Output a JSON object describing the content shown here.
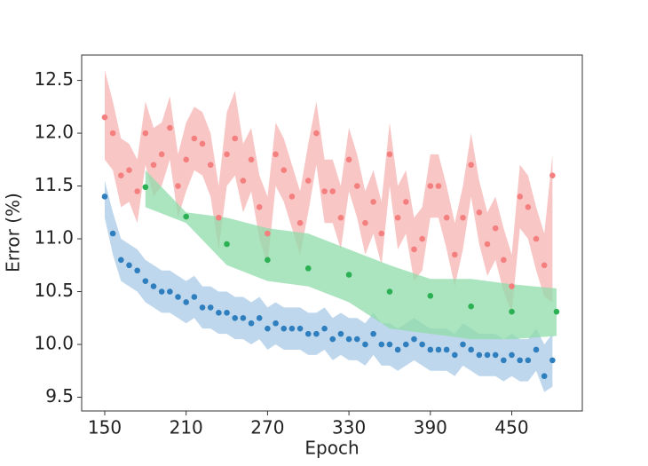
{
  "chart_data": {
    "type": "scatter",
    "xlabel": "Epoch",
    "ylabel": "Error (%)",
    "xlim": [
      133,
      502
    ],
    "ylim": [
      9.37,
      12.74
    ],
    "xticks": [
      150,
      210,
      270,
      330,
      390,
      450
    ],
    "yticks": [
      9.5,
      {
        "value": 10,
        "label": "10.0"
      },
      10.5,
      {
        "value": 11,
        "label": "11.0"
      },
      11.5,
      {
        "value": 12,
        "label": "12.0"
      },
      12.5
    ],
    "series": [
      {
        "color": "#f47f7f",
        "band_color": "#f7b3b3",
        "x": [
          150,
          156,
          162,
          168,
          174,
          180,
          186,
          192,
          198,
          204,
          210,
          216,
          222,
          228,
          234,
          240,
          246,
          252,
          258,
          264,
          270,
          276,
          282,
          288,
          294,
          300,
          306,
          312,
          318,
          324,
          330,
          336,
          342,
          348,
          354,
          360,
          366,
          372,
          378,
          384,
          390,
          396,
          402,
          408,
          414,
          420,
          426,
          432,
          438,
          444,
          450,
          456,
          462,
          468,
          474,
          480
        ],
        "values": [
          12.15,
          12.0,
          11.6,
          11.65,
          11.45,
          12.0,
          11.7,
          11.8,
          12.05,
          11.5,
          11.75,
          11.95,
          11.9,
          11.7,
          11.2,
          11.8,
          11.95,
          11.55,
          11.75,
          11.3,
          11.05,
          11.8,
          11.65,
          11.4,
          11.15,
          11.55,
          12.0,
          11.45,
          11.45,
          11.2,
          11.75,
          11.5,
          11.15,
          11.35,
          11.05,
          11.8,
          11.2,
          11.35,
          10.9,
          11.0,
          11.5,
          11.5,
          11.2,
          10.85,
          11.2,
          11.7,
          11.25,
          10.95,
          11.1,
          10.8,
          10.55,
          11.4,
          11.3,
          11.0,
          10.75,
          11.6
        ],
        "upper": [
          12.6,
          12.3,
          11.95,
          11.9,
          11.75,
          12.3,
          12.05,
          12.1,
          12.35,
          11.8,
          12.1,
          12.25,
          12.2,
          12.0,
          11.5,
          12.2,
          12.4,
          11.9,
          12.05,
          11.6,
          11.4,
          12.1,
          11.95,
          11.7,
          11.45,
          11.9,
          12.3,
          11.75,
          11.75,
          11.5,
          12.05,
          11.8,
          11.45,
          11.65,
          11.35,
          12.1,
          11.5,
          11.65,
          11.2,
          11.3,
          11.8,
          11.8,
          11.5,
          11.15,
          11.5,
          12.0,
          11.55,
          11.25,
          11.4,
          11.1,
          10.85,
          11.7,
          11.6,
          11.3,
          11.05,
          11.8
        ],
        "lower": [
          11.75,
          11.65,
          11.3,
          11.35,
          11.15,
          11.7,
          11.4,
          11.5,
          11.75,
          11.2,
          11.45,
          11.65,
          11.6,
          11.4,
          10.9,
          11.5,
          11.6,
          11.25,
          11.45,
          11.0,
          10.75,
          11.5,
          11.35,
          11.1,
          10.85,
          11.25,
          11.7,
          11.15,
          11.15,
          10.9,
          11.45,
          11.2,
          10.85,
          11.05,
          10.75,
          11.5,
          10.9,
          11.05,
          10.6,
          10.7,
          11.2,
          11.2,
          10.9,
          10.55,
          10.9,
          11.4,
          10.95,
          10.65,
          10.8,
          10.5,
          10.3,
          11.1,
          11.0,
          10.7,
          10.45,
          10.4
        ]
      },
      {
        "color": "#2f7fbf",
        "band_color": "#a9c9e6",
        "x": [
          150,
          156,
          162,
          168,
          174,
          180,
          186,
          192,
          198,
          204,
          210,
          216,
          222,
          228,
          234,
          240,
          246,
          252,
          258,
          264,
          270,
          276,
          282,
          288,
          294,
          300,
          306,
          312,
          318,
          324,
          330,
          336,
          342,
          348,
          354,
          360,
          366,
          372,
          378,
          384,
          390,
          396,
          402,
          408,
          414,
          420,
          426,
          432,
          438,
          444,
          450,
          456,
          462,
          468,
          474,
          480
        ],
        "values": [
          11.4,
          11.05,
          10.8,
          10.75,
          10.7,
          10.6,
          10.55,
          10.5,
          10.5,
          10.45,
          10.4,
          10.45,
          10.35,
          10.35,
          10.3,
          10.3,
          10.25,
          10.25,
          10.2,
          10.25,
          10.15,
          10.2,
          10.15,
          10.15,
          10.15,
          10.1,
          10.1,
          10.15,
          10.05,
          10.1,
          10.05,
          10.05,
          10.0,
          10.1,
          10.0,
          10.0,
          9.95,
          10.0,
          10.05,
          10.0,
          9.95,
          9.95,
          9.95,
          9.9,
          10.0,
          9.95,
          9.9,
          9.9,
          9.9,
          9.85,
          9.9,
          9.85,
          9.85,
          9.95,
          9.7,
          9.85
        ],
        "upper": [
          11.55,
          11.25,
          11.0,
          10.95,
          10.9,
          10.8,
          10.75,
          10.7,
          10.7,
          10.65,
          10.6,
          10.65,
          10.55,
          10.55,
          10.5,
          10.5,
          10.45,
          10.45,
          10.4,
          10.45,
          10.35,
          10.4,
          10.35,
          10.35,
          10.35,
          10.3,
          10.3,
          10.35,
          10.25,
          10.3,
          10.25,
          10.25,
          10.2,
          10.3,
          10.2,
          10.2,
          10.15,
          10.2,
          10.25,
          10.2,
          10.15,
          10.15,
          10.15,
          10.1,
          10.2,
          10.15,
          10.1,
          10.1,
          10.1,
          10.05,
          10.1,
          10.05,
          10.05,
          10.15,
          10.0,
          10.1
        ],
        "lower": [
          11.2,
          10.85,
          10.6,
          10.55,
          10.5,
          10.4,
          10.35,
          10.3,
          10.3,
          10.25,
          10.2,
          10.25,
          10.15,
          10.15,
          10.1,
          10.1,
          10.05,
          10.05,
          10.0,
          10.05,
          9.95,
          10.0,
          9.95,
          9.95,
          9.95,
          9.9,
          9.9,
          9.95,
          9.85,
          9.9,
          9.85,
          9.85,
          9.8,
          9.9,
          9.8,
          9.8,
          9.75,
          9.8,
          9.85,
          9.8,
          9.75,
          9.75,
          9.75,
          9.7,
          9.8,
          9.75,
          9.7,
          9.7,
          9.7,
          9.65,
          9.7,
          9.65,
          9.65,
          9.75,
          9.55,
          9.6
        ]
      },
      {
        "color": "#2bb053",
        "band_color": "#8fdcaa",
        "x": [
          180,
          210,
          240,
          270,
          300,
          330,
          360,
          390,
          420,
          450,
          483
        ],
        "values": [
          11.49,
          11.21,
          10.95,
          10.8,
          10.72,
          10.66,
          10.5,
          10.46,
          10.36,
          10.31,
          10.31
        ],
        "upper": [
          11.65,
          11.25,
          11.2,
          11.1,
          11.05,
          10.9,
          10.75,
          10.62,
          10.62,
          10.57,
          10.53
        ],
        "lower": [
          11.3,
          11.15,
          10.75,
          10.6,
          10.55,
          10.4,
          10.15,
          10.1,
          10.05,
          10.05,
          10.08
        ]
      }
    ]
  }
}
